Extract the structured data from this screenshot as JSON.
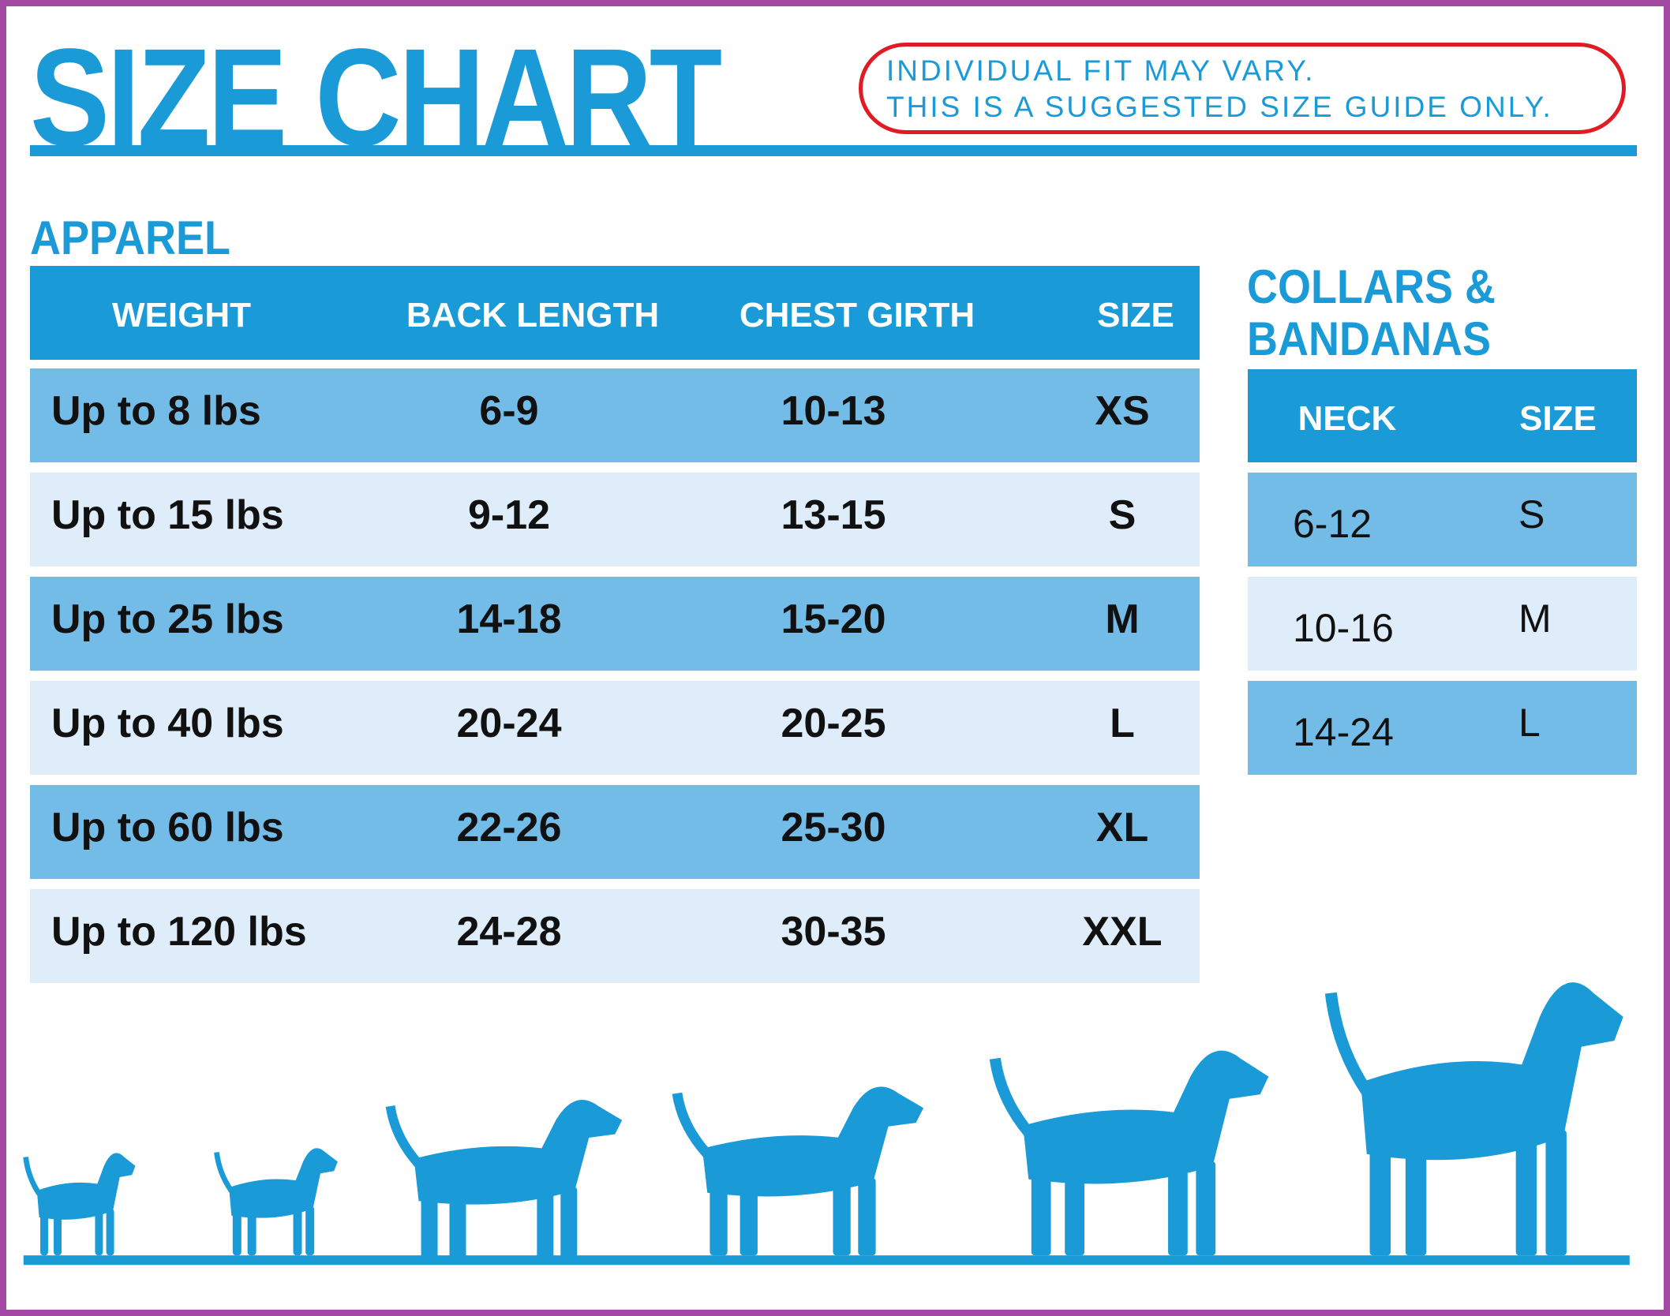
{
  "title": "SIZE CHART",
  "notice": [
    "INDIVIDUAL FIT MAY VARY.",
    "THIS IS A SUGGESTED SIZE GUIDE ONLY."
  ],
  "colors": {
    "primary": "#1a9ad6",
    "row_dark": "#74bce8",
    "row_light": "#deedf9",
    "notice_outline": "#e01b24",
    "frame": "#a349a4"
  },
  "apparel": {
    "heading": "APPAREL",
    "columns": [
      "WEIGHT",
      "BACK LENGTH",
      "CHEST GIRTH",
      "SIZE"
    ],
    "rows": [
      {
        "weight": "Up to 8 lbs",
        "back_length": "6-9",
        "chest_girth": "10-13",
        "size": "XS"
      },
      {
        "weight": "Up to 15 lbs",
        "back_length": "9-12",
        "chest_girth": "13-15",
        "size": "S"
      },
      {
        "weight": "Up to 25 lbs",
        "back_length": "14-18",
        "chest_girth": "15-20",
        "size": "M"
      },
      {
        "weight": "Up to 40 lbs",
        "back_length": "20-24",
        "chest_girth": "20-25",
        "size": "L"
      },
      {
        "weight": "Up to 60 lbs",
        "back_length": "22-26",
        "chest_girth": "25-30",
        "size": "XL"
      },
      {
        "weight": "Up to 120 lbs",
        "back_length": "24-28",
        "chest_girth": "30-35",
        "size": "XXL"
      }
    ]
  },
  "collars": {
    "heading": [
      "COLLARS &",
      "BANDANAS"
    ],
    "columns": [
      "NECK",
      "SIZE"
    ],
    "rows": [
      {
        "neck": "6-12",
        "size": "S"
      },
      {
        "neck": "10-16",
        "size": "M"
      },
      {
        "neck": "14-24",
        "size": "L"
      }
    ]
  },
  "illustration": {
    "icons": [
      "pomeranian-icon",
      "pug-icon",
      "beagle-icon",
      "spaniel-icon",
      "husky-icon",
      "great-dane-icon"
    ]
  }
}
